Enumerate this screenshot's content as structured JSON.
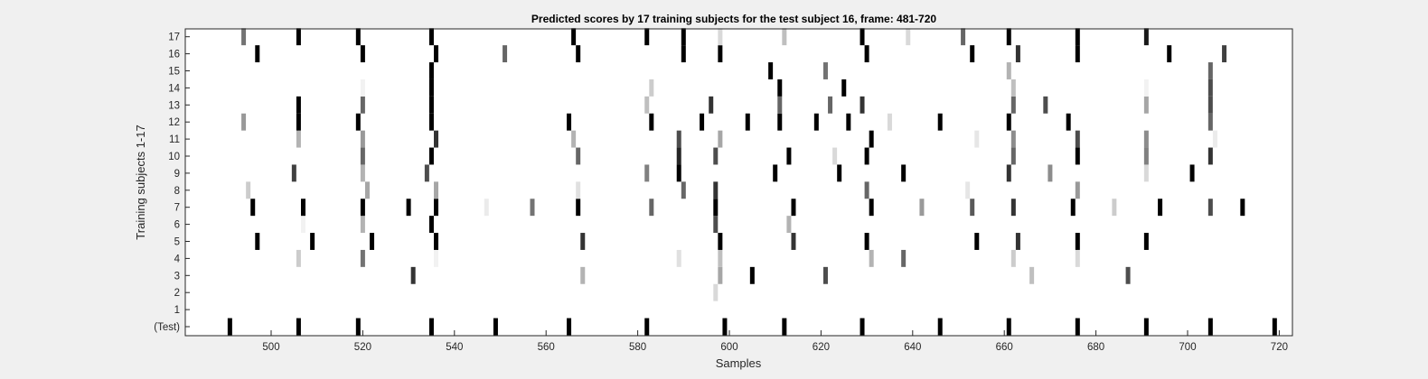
{
  "chart_data": {
    "type": "heatmap",
    "title": "Predicted scores by 17 training subjects for the test subject 16, frame: 481-720",
    "xlabel": "Samples",
    "ylabel": "Training subjects 1-17",
    "xlim": [
      481,
      720
    ],
    "x_ticks": [
      500,
      520,
      540,
      560,
      580,
      600,
      620,
      640,
      660,
      680,
      700,
      720
    ],
    "x_tick_labels": [
      "500",
      "520",
      "540",
      "560",
      "580",
      "600",
      "620",
      "640",
      "660",
      "680",
      "700",
      "720"
    ],
    "y_tick_labels": [
      "(Test)",
      "1",
      "2",
      "3",
      "4",
      "5",
      "6",
      "7",
      "8",
      "9",
      "10",
      "11",
      "12",
      "13",
      "14",
      "15",
      "16",
      "17"
    ],
    "colormap": "white (0) to black (1)",
    "grid": false,
    "rows": [
      {
        "label": "(Test)",
        "marks": [
          [
            491,
            1
          ],
          [
            506,
            1
          ],
          [
            519,
            1
          ],
          [
            535,
            1
          ],
          [
            549,
            1
          ],
          [
            565,
            1
          ],
          [
            582,
            1
          ],
          [
            599,
            1
          ],
          [
            612,
            1
          ],
          [
            629,
            1
          ],
          [
            646,
            1
          ],
          [
            661,
            1
          ],
          [
            676,
            1
          ],
          [
            691,
            1
          ],
          [
            705,
            1
          ],
          [
            719,
            1
          ]
        ]
      },
      {
        "label": "1",
        "marks": []
      },
      {
        "label": "2",
        "marks": [
          [
            597,
            0.15
          ]
        ]
      },
      {
        "label": "3",
        "marks": [
          [
            531,
            0.8
          ],
          [
            568,
            0.3
          ],
          [
            598,
            0.35
          ],
          [
            605,
            1
          ],
          [
            621,
            0.7
          ],
          [
            666,
            0.25
          ],
          [
            687,
            0.7
          ]
        ]
      },
      {
        "label": "4",
        "marks": [
          [
            506,
            0.2
          ],
          [
            520,
            0.55
          ],
          [
            536,
            0.05
          ],
          [
            589,
            0.12
          ],
          [
            598,
            0.25
          ],
          [
            631,
            0.3
          ],
          [
            638,
            0.6
          ],
          [
            662,
            0.2
          ],
          [
            676,
            0.15
          ]
        ]
      },
      {
        "label": "5",
        "marks": [
          [
            497,
            1
          ],
          [
            509,
            1
          ],
          [
            522,
            1
          ],
          [
            536,
            1
          ],
          [
            568,
            0.8
          ],
          [
            598,
            1
          ],
          [
            614,
            0.8
          ],
          [
            630,
            1
          ],
          [
            654,
            1
          ],
          [
            663,
            0.8
          ],
          [
            676,
            1
          ],
          [
            691,
            1
          ]
        ]
      },
      {
        "label": "6",
        "marks": [
          [
            507,
            0.05
          ],
          [
            520,
            0.3
          ],
          [
            535,
            1
          ],
          [
            597,
            0.7
          ],
          [
            613,
            0.3
          ]
        ]
      },
      {
        "label": "7",
        "marks": [
          [
            496,
            1
          ],
          [
            507,
            1
          ],
          [
            520,
            1
          ],
          [
            530,
            1
          ],
          [
            536,
            1
          ],
          [
            547,
            0.08
          ],
          [
            557,
            0.55
          ],
          [
            567,
            1
          ],
          [
            583,
            0.6
          ],
          [
            597,
            1
          ],
          [
            614,
            1
          ],
          [
            631,
            1
          ],
          [
            642,
            0.4
          ],
          [
            653,
            0.65
          ],
          [
            662,
            0.8
          ],
          [
            675,
            1
          ],
          [
            684,
            0.2
          ],
          [
            694,
            1
          ],
          [
            705,
            0.7
          ],
          [
            712,
            1
          ]
        ]
      },
      {
        "label": "8",
        "marks": [
          [
            495,
            0.2
          ],
          [
            521,
            0.35
          ],
          [
            536,
            0.35
          ],
          [
            567,
            0.12
          ],
          [
            590,
            0.6
          ],
          [
            597,
            0.8
          ],
          [
            630,
            0.6
          ],
          [
            652,
            0.1
          ],
          [
            676,
            0.4
          ]
        ]
      },
      {
        "label": "9",
        "marks": [
          [
            505,
            0.75
          ],
          [
            520,
            0.3
          ],
          [
            534,
            0.7
          ],
          [
            582,
            0.5
          ],
          [
            589,
            1
          ],
          [
            610,
            1
          ],
          [
            624,
            1
          ],
          [
            638,
            1
          ],
          [
            661,
            0.8
          ],
          [
            670,
            0.45
          ],
          [
            691,
            0.15
          ],
          [
            701,
            1
          ]
        ]
      },
      {
        "label": "10",
        "marks": [
          [
            520,
            0.6
          ],
          [
            535,
            1
          ],
          [
            567,
            0.6
          ],
          [
            589,
            0.85
          ],
          [
            597,
            0.7
          ],
          [
            613,
            1
          ],
          [
            623,
            0.15
          ],
          [
            630,
            1
          ],
          [
            662,
            0.6
          ],
          [
            676,
            1
          ],
          [
            691,
            0.5
          ],
          [
            705,
            0.8
          ]
        ]
      },
      {
        "label": "11",
        "marks": [
          [
            506,
            0.3
          ],
          [
            520,
            0.4
          ],
          [
            536,
            0.8
          ],
          [
            566,
            0.3
          ],
          [
            589,
            0.7
          ],
          [
            598,
            0.35
          ],
          [
            631,
            1
          ],
          [
            654,
            0.1
          ],
          [
            662,
            0.45
          ],
          [
            676,
            0.7
          ],
          [
            691,
            0.45
          ],
          [
            706,
            0.08
          ]
        ]
      },
      {
        "label": "12",
        "marks": [
          [
            494,
            0.4
          ],
          [
            506,
            1
          ],
          [
            519,
            1
          ],
          [
            535,
            1
          ],
          [
            565,
            1
          ],
          [
            583,
            1
          ],
          [
            594,
            1
          ],
          [
            604,
            1
          ],
          [
            611,
            1
          ],
          [
            619,
            1
          ],
          [
            626,
            1
          ],
          [
            635,
            0.15
          ],
          [
            646,
            1
          ],
          [
            661,
            1
          ],
          [
            674,
            1
          ],
          [
            705,
            0.6
          ]
        ]
      },
      {
        "label": "13",
        "marks": [
          [
            506,
            1
          ],
          [
            520,
            0.6
          ],
          [
            535,
            1
          ],
          [
            582,
            0.25
          ],
          [
            596,
            0.8
          ],
          [
            611,
            0.6
          ],
          [
            622,
            0.6
          ],
          [
            629,
            0.8
          ],
          [
            662,
            0.6
          ],
          [
            669,
            0.7
          ],
          [
            691,
            0.35
          ],
          [
            705,
            0.7
          ]
        ]
      },
      {
        "label": "14",
        "marks": [
          [
            520,
            0.05
          ],
          [
            535,
            1
          ],
          [
            583,
            0.2
          ],
          [
            611,
            1
          ],
          [
            625,
            1
          ],
          [
            662,
            0.25
          ],
          [
            691,
            0.05
          ],
          [
            705,
            0.7
          ]
        ]
      },
      {
        "label": "15",
        "marks": [
          [
            535,
            1
          ],
          [
            609,
            1
          ],
          [
            621,
            0.55
          ],
          [
            661,
            0.3
          ],
          [
            705,
            0.6
          ]
        ]
      },
      {
        "label": "16",
        "marks": [
          [
            497,
            1
          ],
          [
            520,
            1
          ],
          [
            536,
            1
          ],
          [
            551,
            0.6
          ],
          [
            567,
            1
          ],
          [
            590,
            1
          ],
          [
            598,
            1
          ],
          [
            630,
            1
          ],
          [
            653,
            1
          ],
          [
            663,
            0.8
          ],
          [
            676,
            1
          ],
          [
            696,
            1
          ],
          [
            708,
            0.75
          ]
        ]
      },
      {
        "label": "17",
        "marks": [
          [
            494,
            0.55
          ],
          [
            506,
            1
          ],
          [
            519,
            1
          ],
          [
            535,
            1
          ],
          [
            566,
            1
          ],
          [
            582,
            1
          ],
          [
            590,
            1
          ],
          [
            598,
            0.15
          ],
          [
            612,
            0.25
          ],
          [
            629,
            1
          ],
          [
            639,
            0.15
          ],
          [
            651,
            0.6
          ],
          [
            661,
            1
          ],
          [
            676,
            1
          ],
          [
            691,
            0.9
          ]
        ]
      }
    ]
  }
}
